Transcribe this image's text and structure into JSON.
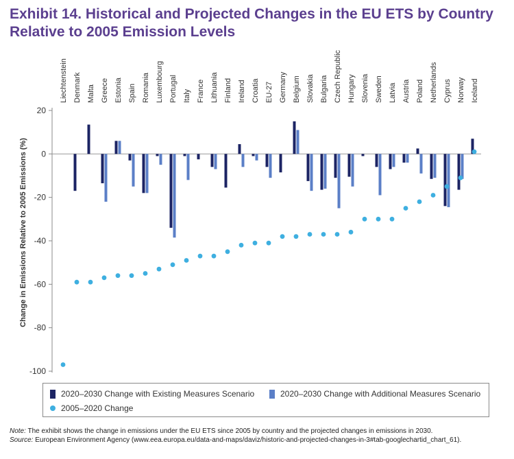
{
  "title": "Exhibit 14. Historical and Projected Changes in the EU ETS by Country Relative to 2005 Emission Levels",
  "colors": {
    "existing": "#1c2464",
    "additional": "#5b7fc7",
    "historical": "#3eafe0",
    "title": "#5b3f8f"
  },
  "chart_data": {
    "type": "bar",
    "ylabel": "Change in Emissions Relative to 2005 Emissions (%)",
    "ylim": [
      -100,
      20
    ],
    "yticks": [
      20,
      0,
      -20,
      -40,
      -60,
      -80,
      -100
    ],
    "categories": [
      "Liechtenstein",
      "Denmark",
      "Malta",
      "Greece",
      "Estonia",
      "Spain",
      "Romania",
      "Luxembourg",
      "Portugal",
      "Italy",
      "France",
      "Lithuania",
      "Finland",
      "Ireland",
      "Croatia",
      "EU-27",
      "Germany",
      "Belgium",
      "Slovakia",
      "Bulgaria",
      "Czech Republic",
      "Hungary",
      "Slovenia",
      "Sweden",
      "Latvia",
      "Austria",
      "Poland",
      "Netherlands",
      "Cyprus",
      "Norway",
      "Iceland"
    ],
    "series": [
      {
        "name": "2020–2030 Change with Existing Measures Scenario",
        "kind": "bar",
        "values": [
          0,
          -17,
          13.5,
          -13.5,
          6,
          -3,
          -18,
          -1,
          -34,
          -1,
          -2.5,
          -6,
          -15.5,
          4.5,
          -1,
          -6,
          -8.5,
          15,
          -12.5,
          -16.5,
          -11,
          -10.5,
          -1,
          -6,
          -7,
          -4,
          2.5,
          -11.5,
          -24,
          -16.5,
          7
        ]
      },
      {
        "name": "2020–2030 Change with Additional Measures Scenario",
        "kind": "bar",
        "values": [
          0,
          0,
          0,
          -22,
          6,
          -15,
          -18,
          -5,
          -38.5,
          -12,
          0,
          -7,
          0,
          -6,
          -3,
          -11,
          0,
          11,
          -17,
          -16,
          -25,
          -15,
          0,
          -19,
          -6,
          -4,
          -9,
          -11,
          -24.5,
          -11.5,
          0
        ]
      },
      {
        "name": "2005–2020 Change",
        "kind": "scatter",
        "values": [
          -97,
          -59,
          -59,
          -57,
          -56,
          -56,
          -55,
          -53,
          -51,
          -49,
          -47,
          -47,
          -45,
          -42,
          -41,
          -41,
          -38,
          -38,
          -37,
          -37,
          -37,
          -36,
          -30,
          -30,
          -30,
          -25,
          -22,
          -19,
          -15,
          -11,
          1
        ]
      }
    ]
  },
  "legend": {
    "existing": "2020–2030 Change with Existing Measures Scenario",
    "additional": "2020–2030 Change with Additional Measures Scenario",
    "historical": "2005–2020 Change"
  },
  "note": {
    "label": "Note:",
    "text": "The exhibit shows the change in emissions under the EU ETS since 2005 by country and the projected changes in emissions in 2030."
  },
  "source": {
    "label": "Source:",
    "text": "European Environment Agency (www.eea.europa.eu/data-and-maps/daviz/historic-and-projected-changes-in-3#tab-googlechartid_chart_61)."
  }
}
